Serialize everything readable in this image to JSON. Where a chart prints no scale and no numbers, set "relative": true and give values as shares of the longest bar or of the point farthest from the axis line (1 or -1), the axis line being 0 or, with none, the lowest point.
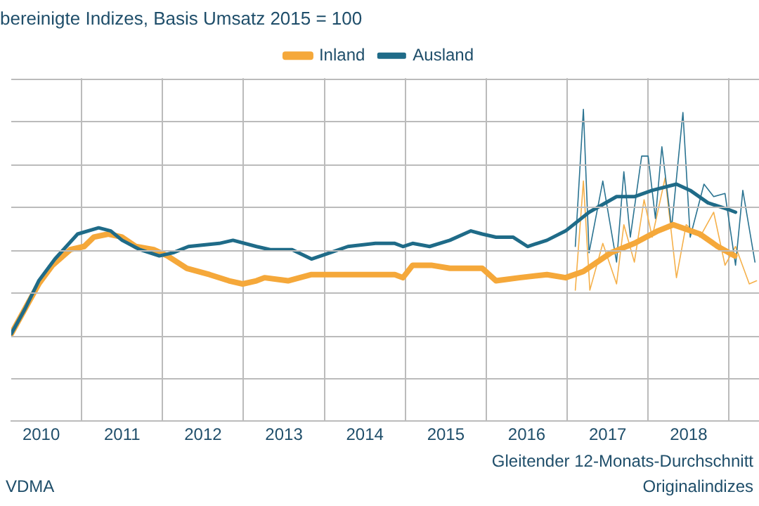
{
  "chart_data": {
    "type": "line",
    "title": "bereinigte Indizes, Basis Umsatz 2015 = 100",
    "relative": true,
    "grid": true,
    "legend": "top",
    "xlim": [
      2010.13,
      2019.37
    ],
    "xticks": [
      {
        "value": 2010.5,
        "label": "2010"
      },
      {
        "value": 2011,
        "label": null
      },
      {
        "value": 2011.5,
        "label": "2011"
      },
      {
        "value": 2012,
        "label": null
      },
      {
        "value": 2012.5,
        "label": "2012"
      },
      {
        "value": 2013,
        "label": null
      },
      {
        "value": 2013.5,
        "label": "2013"
      },
      {
        "value": 2014,
        "label": null
      },
      {
        "value": 2014.5,
        "label": "2014"
      },
      {
        "value": 2015,
        "label": null
      },
      {
        "value": 2015.5,
        "label": "2015"
      },
      {
        "value": 2016,
        "label": null
      },
      {
        "value": 2016.5,
        "label": "2016"
      },
      {
        "value": 2017,
        "label": null
      },
      {
        "value": 2017.5,
        "label": "2017"
      },
      {
        "value": 2018,
        "label": null
      },
      {
        "value": 2018.5,
        "label": "2018"
      },
      {
        "value": 2019,
        "label": null
      }
    ],
    "annotations": [
      "VDMA",
      "Gleitender 12-Monats-Durchschnitt",
      "Originalindizes"
    ],
    "series": [
      {
        "color": "#f5b04a",
        "x": [
          2017.1,
          2017.2,
          2017.28,
          2017.44,
          2017.61,
          2017.7,
          2017.83,
          2017.95,
          2018.05,
          2018.21,
          2018.35,
          2018.47,
          2018.64,
          2018.81,
          2018.95,
          2019.08,
          2019.25,
          2019.34
        ],
        "values": [
          0.42,
          0.77,
          0.42,
          0.57,
          0.44,
          0.63,
          0.51,
          0.71,
          0.59,
          0.78,
          0.46,
          0.63,
          0.59,
          0.67,
          0.5,
          0.56,
          0.44,
          0.45
        ]
      },
      {
        "color": "#2a7391",
        "x": [
          2017.1,
          2017.2,
          2017.27,
          2017.44,
          2017.61,
          2017.7,
          2017.78,
          2017.92,
          2018.0,
          2018.09,
          2018.17,
          2018.29,
          2018.43,
          2018.52,
          2018.69,
          2018.81,
          2018.95,
          2019.08,
          2019.17,
          2019.32
        ],
        "values": [
          0.56,
          1.0,
          0.54,
          0.77,
          0.51,
          0.8,
          0.59,
          0.85,
          0.85,
          0.65,
          0.88,
          0.62,
          0.99,
          0.59,
          0.76,
          0.72,
          0.73,
          0.5,
          0.74,
          0.51
        ]
      },
      {
        "name": "Inland",
        "color": "#f5a83a",
        "x": [
          2010.13,
          2010.3,
          2010.47,
          2010.64,
          2010.86,
          2011.03,
          2011.15,
          2011.33,
          2011.5,
          2011.67,
          2011.89,
          2012.06,
          2012.3,
          2012.58,
          2012.82,
          2012.99,
          2013.16,
          2013.26,
          2013.55,
          2013.84,
          2014.12,
          2014.46,
          2014.87,
          2014.97,
          2015.09,
          2015.32,
          2015.55,
          2015.95,
          2016.12,
          2016.41,
          2016.75,
          2016.98,
          2017.2,
          2017.54,
          2017.83,
          2018.12,
          2018.31,
          2018.64,
          2018.86,
          2019.07
        ],
        "values": [
          0.28,
          0.36,
          0.44,
          0.5,
          0.55,
          0.56,
          0.59,
          0.6,
          0.59,
          0.56,
          0.55,
          0.53,
          0.49,
          0.47,
          0.45,
          0.44,
          0.45,
          0.46,
          0.45,
          0.47,
          0.47,
          0.47,
          0.47,
          0.46,
          0.5,
          0.5,
          0.49,
          0.49,
          0.45,
          0.46,
          0.47,
          0.46,
          0.48,
          0.54,
          0.57,
          0.61,
          0.63,
          0.6,
          0.56,
          0.53
        ]
      },
      {
        "name": "Ausland",
        "color": "#1f6b88",
        "x": [
          2010.13,
          2010.3,
          2010.47,
          2010.67,
          2010.95,
          2011.21,
          2011.36,
          2011.5,
          2011.72,
          2011.96,
          2012.13,
          2012.32,
          2012.7,
          2012.87,
          2013.16,
          2013.33,
          2013.6,
          2013.84,
          2014.07,
          2014.29,
          2014.63,
          2014.87,
          2014.97,
          2015.09,
          2015.3,
          2015.55,
          2015.81,
          2015.95,
          2016.12,
          2016.33,
          2016.51,
          2016.75,
          2016.98,
          2017.27,
          2017.61,
          2017.83,
          2018.05,
          2018.35,
          2018.52,
          2018.74,
          2018.98,
          2019.08
        ],
        "values": [
          0.28,
          0.36,
          0.45,
          0.52,
          0.6,
          0.62,
          0.61,
          0.58,
          0.55,
          0.53,
          0.54,
          0.56,
          0.57,
          0.58,
          0.56,
          0.55,
          0.55,
          0.52,
          0.54,
          0.56,
          0.57,
          0.57,
          0.56,
          0.57,
          0.56,
          0.58,
          0.61,
          0.6,
          0.59,
          0.59,
          0.56,
          0.58,
          0.61,
          0.67,
          0.72,
          0.72,
          0.74,
          0.76,
          0.74,
          0.7,
          0.68,
          0.67
        ]
      }
    ]
  }
}
